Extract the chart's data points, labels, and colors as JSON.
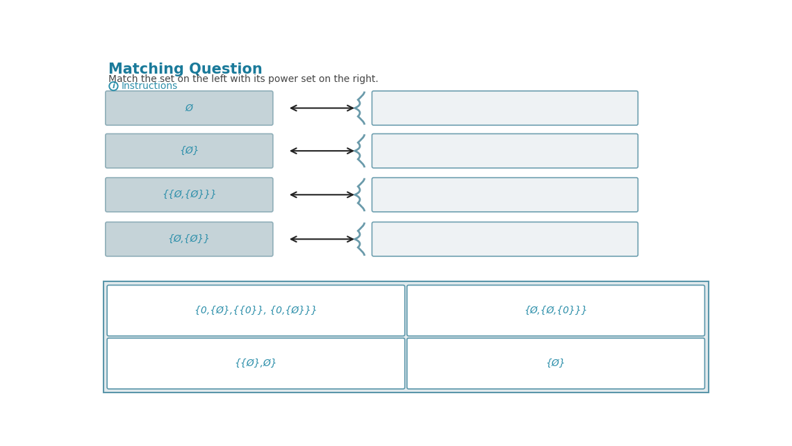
{
  "title": "Matching Question",
  "subtitle": "Match the set on the left with its power set on the right.",
  "instructions_text": "Instructions",
  "left_labels": [
    "Ø",
    "{Ø}",
    "{{Ø,{Ø}}}",
    "{Ø,{Ø}}"
  ],
  "bottom_items": [
    "{0,{Ø},{{0}}, {0,{Ø}}}",
    "{{Ø},Ø}",
    "{Ø,{Ø,{0}}}",
    "{Ø}"
  ],
  "bg_color": "#ffffff",
  "left_box_color": "#c5d3d8",
  "right_box_color": "#eef2f4",
  "bottom_bg_color": "#e2eaed",
  "bottom_box_color": "#ffffff",
  "title_color": "#1a7a9a",
  "subtitle_color": "#444444",
  "instructions_color": "#2d8faa",
  "text_color_teal": "#2d8faa",
  "arrow_color": "#222222",
  "border_color_left": "#8faeb8",
  "border_color_right": "#6fa0b0",
  "border_color_bottom": "#5a96aa",
  "brace_color": "#6a9aaa"
}
